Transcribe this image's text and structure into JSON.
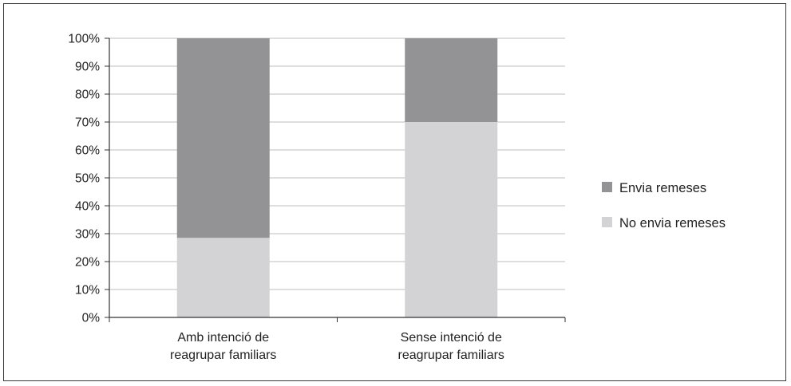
{
  "chart_data": {
    "type": "bar",
    "stacked": true,
    "percent": true,
    "categories": [
      [
        "Amb intenció de",
        "reagrupar familiars"
      ],
      [
        "Sense intenció de",
        "reagrupar familiars"
      ]
    ],
    "series": [
      {
        "name": "No envia remeses",
        "values": [
          28.5,
          70
        ],
        "color": "#d3d3d5"
      },
      {
        "name": "Envia remeses",
        "values": [
          71.5,
          30
        ],
        "color": "#939396"
      }
    ],
    "legend_order": [
      1,
      0
    ],
    "yticks": [
      "0%",
      "10%",
      "20%",
      "30%",
      "40%",
      "50%",
      "60%",
      "70%",
      "80%",
      "90%",
      "100%"
    ],
    "ylim": [
      0,
      100
    ],
    "grid": true,
    "legend_position": "right",
    "title": "",
    "xlabel": "",
    "ylabel": ""
  }
}
